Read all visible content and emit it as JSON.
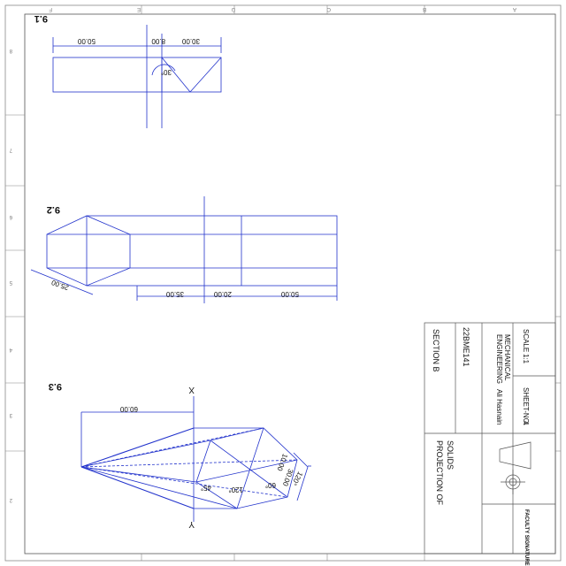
{
  "sheet": {
    "zone_numbers_top": [
      "A",
      "B",
      "C",
      "D",
      "E",
      "F"
    ],
    "zone_numbers_side": [
      "1",
      "2",
      "3",
      "4",
      "5",
      "6",
      "7",
      "8"
    ]
  },
  "fig_9_1": {
    "label": "9.1",
    "dims": [
      "50.00",
      "8.00",
      "30.00"
    ],
    "angle": "30°"
  },
  "fig_9_2": {
    "label": "9.2",
    "dims": [
      "35.00",
      "20.00",
      "50.00"
    ],
    "across_flats": "25.00"
  },
  "fig_9_3": {
    "label": "9.3",
    "dim_length": "60.00",
    "axis_x": "X",
    "axis_y": "Y",
    "angles": [
      "45°",
      "120°",
      "60°",
      "120°"
    ],
    "side_len": "30.00",
    "small_dim": "10.00"
  },
  "title_block": {
    "course_line1": "ENGINEERING",
    "course_line2": "MECHANICAL",
    "scale_label": "SCALE",
    "scale_value": "1:1",
    "sheet_label": "SHEET-NO.",
    "sheet_value": "4",
    "name": "Ali Hasnain",
    "roll": "22BME141",
    "section": "SECTION B",
    "title_line1": "SOLIDS",
    "title_line2": "PROJECTION OF",
    "signature_label": "FACULTY SIGNATURE"
  }
}
